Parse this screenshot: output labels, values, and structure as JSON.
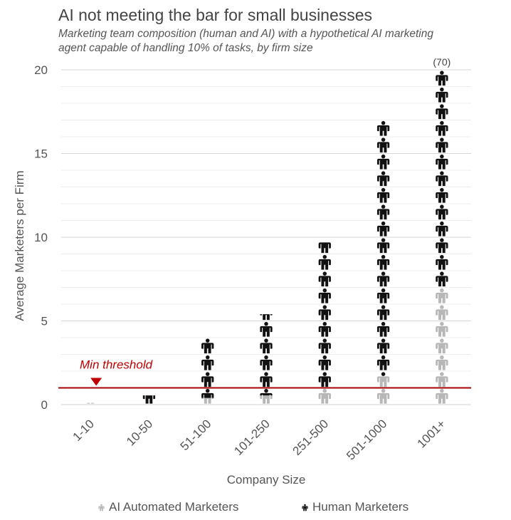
{
  "title": "AI not meeting the bar for small businesses",
  "subtitle": "Marketing team composition (human and AI) with a hypothetical AI marketing agent capable of handling 10% of tasks, by firm size",
  "chart_data": {
    "type": "bar",
    "style": "stacked pictogram (person icons)",
    "xlabel": "Company Size",
    "ylabel": "Average Marketers per Firm",
    "categories": [
      "1-10",
      "10-50",
      "51-100",
      "101-250",
      "251-500",
      "501-1000",
      "1001+"
    ],
    "ylim": [
      0,
      20
    ],
    "yticks": [
      0,
      5,
      10,
      15,
      20
    ],
    "gridlines": true,
    "series": [
      {
        "name": "AI Automated Marketers",
        "color": "#b7b7b7",
        "values": [
          0.1,
          0.05,
          0.4,
          0.55,
          1.0,
          1.7,
          7.0
        ]
      },
      {
        "name": "Human Marketers",
        "color": "#111111",
        "values": [
          0.0,
          0.5,
          3.6,
          4.85,
          8.7,
          15.3,
          13.0
        ]
      }
    ],
    "threshold": {
      "label": "Min threshold",
      "value": 1.0,
      "color": "#c00000"
    },
    "annotations": [
      {
        "category": "1001+",
        "text": "(70)"
      }
    ],
    "legend_position": "bottom"
  }
}
